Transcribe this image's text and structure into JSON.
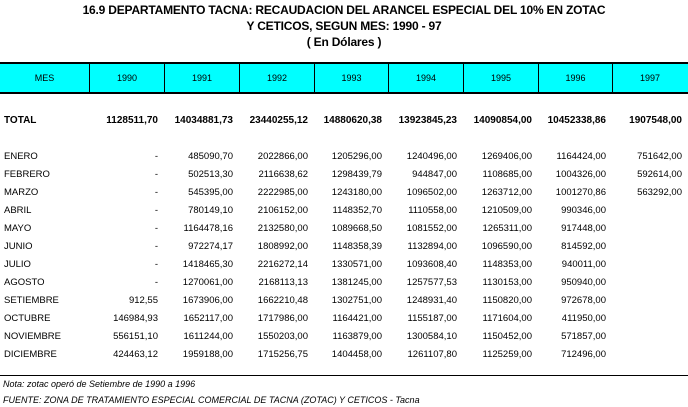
{
  "title": {
    "line1": "16.9  DEPARTAMENTO TACNA: RECAUDACION DEL ARANCEL ESPECIAL DEL 10% EN ZOTAC",
    "line2": "Y CETICOS, SEGUN MES: 1990 - 97",
    "line3": "( En Dólares )"
  },
  "header": {
    "color": "#00ffff",
    "columns": [
      "MES",
      "1990",
      "1991",
      "1992",
      "1993",
      "1994",
      "1995",
      "1996",
      "1997"
    ]
  },
  "total": {
    "label": "TOTAL",
    "values": [
      "1128511,70",
      "14034881,73",
      "23440255,12",
      "14880620,38",
      "13923845,23",
      "14090854,00",
      "10452338,86",
      "1907548,00"
    ]
  },
  "rows": [
    {
      "label": "ENERO",
      "values": [
        "-",
        "485090,70",
        "2022866,00",
        "1205296,00",
        "1240496,00",
        "1269406,00",
        "1164424,00",
        "751642,00"
      ]
    },
    {
      "label": "FEBRERO",
      "values": [
        "-",
        "502513,30",
        "2116638,62",
        "1298439,79",
        "944847,00",
        "1108685,00",
        "1004326,00",
        "592614,00"
      ]
    },
    {
      "label": "MARZO",
      "values": [
        "-",
        "545395,00",
        "2222985,00",
        "1243180,00",
        "1096502,00",
        "1263712,00",
        "1001270,86",
        "563292,00"
      ]
    },
    {
      "label": "ABRIL",
      "values": [
        "-",
        "780149,10",
        "2106152,00",
        "1148352,70",
        "1110558,00",
        "1210509,00",
        "990346,00",
        ""
      ]
    },
    {
      "label": "MAYO",
      "values": [
        "-",
        "1164478,16",
        "2132580,00",
        "1089668,50",
        "1081552,00",
        "1265311,00",
        "917448,00",
        ""
      ]
    },
    {
      "label": "JUNIO",
      "values": [
        "-",
        "972274,17",
        "1808992,00",
        "1148358,39",
        "1132894,00",
        "1096590,00",
        "814592,00",
        ""
      ]
    },
    {
      "label": "JULIO",
      "values": [
        "-",
        "1418465,30",
        "2216272,14",
        "1330571,00",
        "1093608,40",
        "1148353,00",
        "940011,00",
        ""
      ]
    },
    {
      "label": "AGOSTO",
      "values": [
        "-",
        "1270061,00",
        "2168113,13",
        "1381245,00",
        "1257577,53",
        "1130153,00",
        "950940,00",
        ""
      ]
    },
    {
      "label": "SETIEMBRE",
      "values": [
        "912,55",
        "1673906,00",
        "1662210,48",
        "1302751,00",
        "1248931,40",
        "1150820,00",
        "972678,00",
        ""
      ]
    },
    {
      "label": "OCTUBRE",
      "values": [
        "146984,93",
        "1652117,00",
        "1717986,00",
        "1164421,00",
        "1155187,00",
        "1171604,00",
        "411950,00",
        ""
      ]
    },
    {
      "label": "NOVIEMBRE",
      "values": [
        "556151,10",
        "1611244,00",
        "1550203,00",
        "1163879,00",
        "1300584,10",
        "1150452,00",
        "571857,00",
        ""
      ]
    },
    {
      "label": "DICIEMBRE",
      "values": [
        "424463,12",
        "1959188,00",
        "1715256,75",
        "1404458,00",
        "1261107,80",
        "1125259,00",
        "712496,00",
        ""
      ]
    }
  ],
  "notes": {
    "nota": "Nota: zotac  operó de Setiembre de 1990 a 1996",
    "fuente": "FUENTE: ZONA DE TRATAMIENTO ESPECIAL COMERCIAL DE TACNA  (ZOTAC)  Y CETICOS - Tacna"
  }
}
